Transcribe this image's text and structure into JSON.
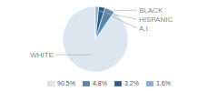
{
  "chart_data": {
    "type": "pie",
    "categories": [
      "WHITE",
      "A.I.",
      "HISPANIC",
      "BLACK"
    ],
    "values": [
      90.5,
      4.8,
      3.2,
      1.6
    ],
    "value_labels": [
      "90.5%",
      "4.8%",
      "3.2%",
      "1.6%"
    ],
    "colors": [
      "#dce6f1",
      "#5a85a8",
      "#2e5f8a",
      "#8aafc8"
    ],
    "legend": "bottom"
  }
}
